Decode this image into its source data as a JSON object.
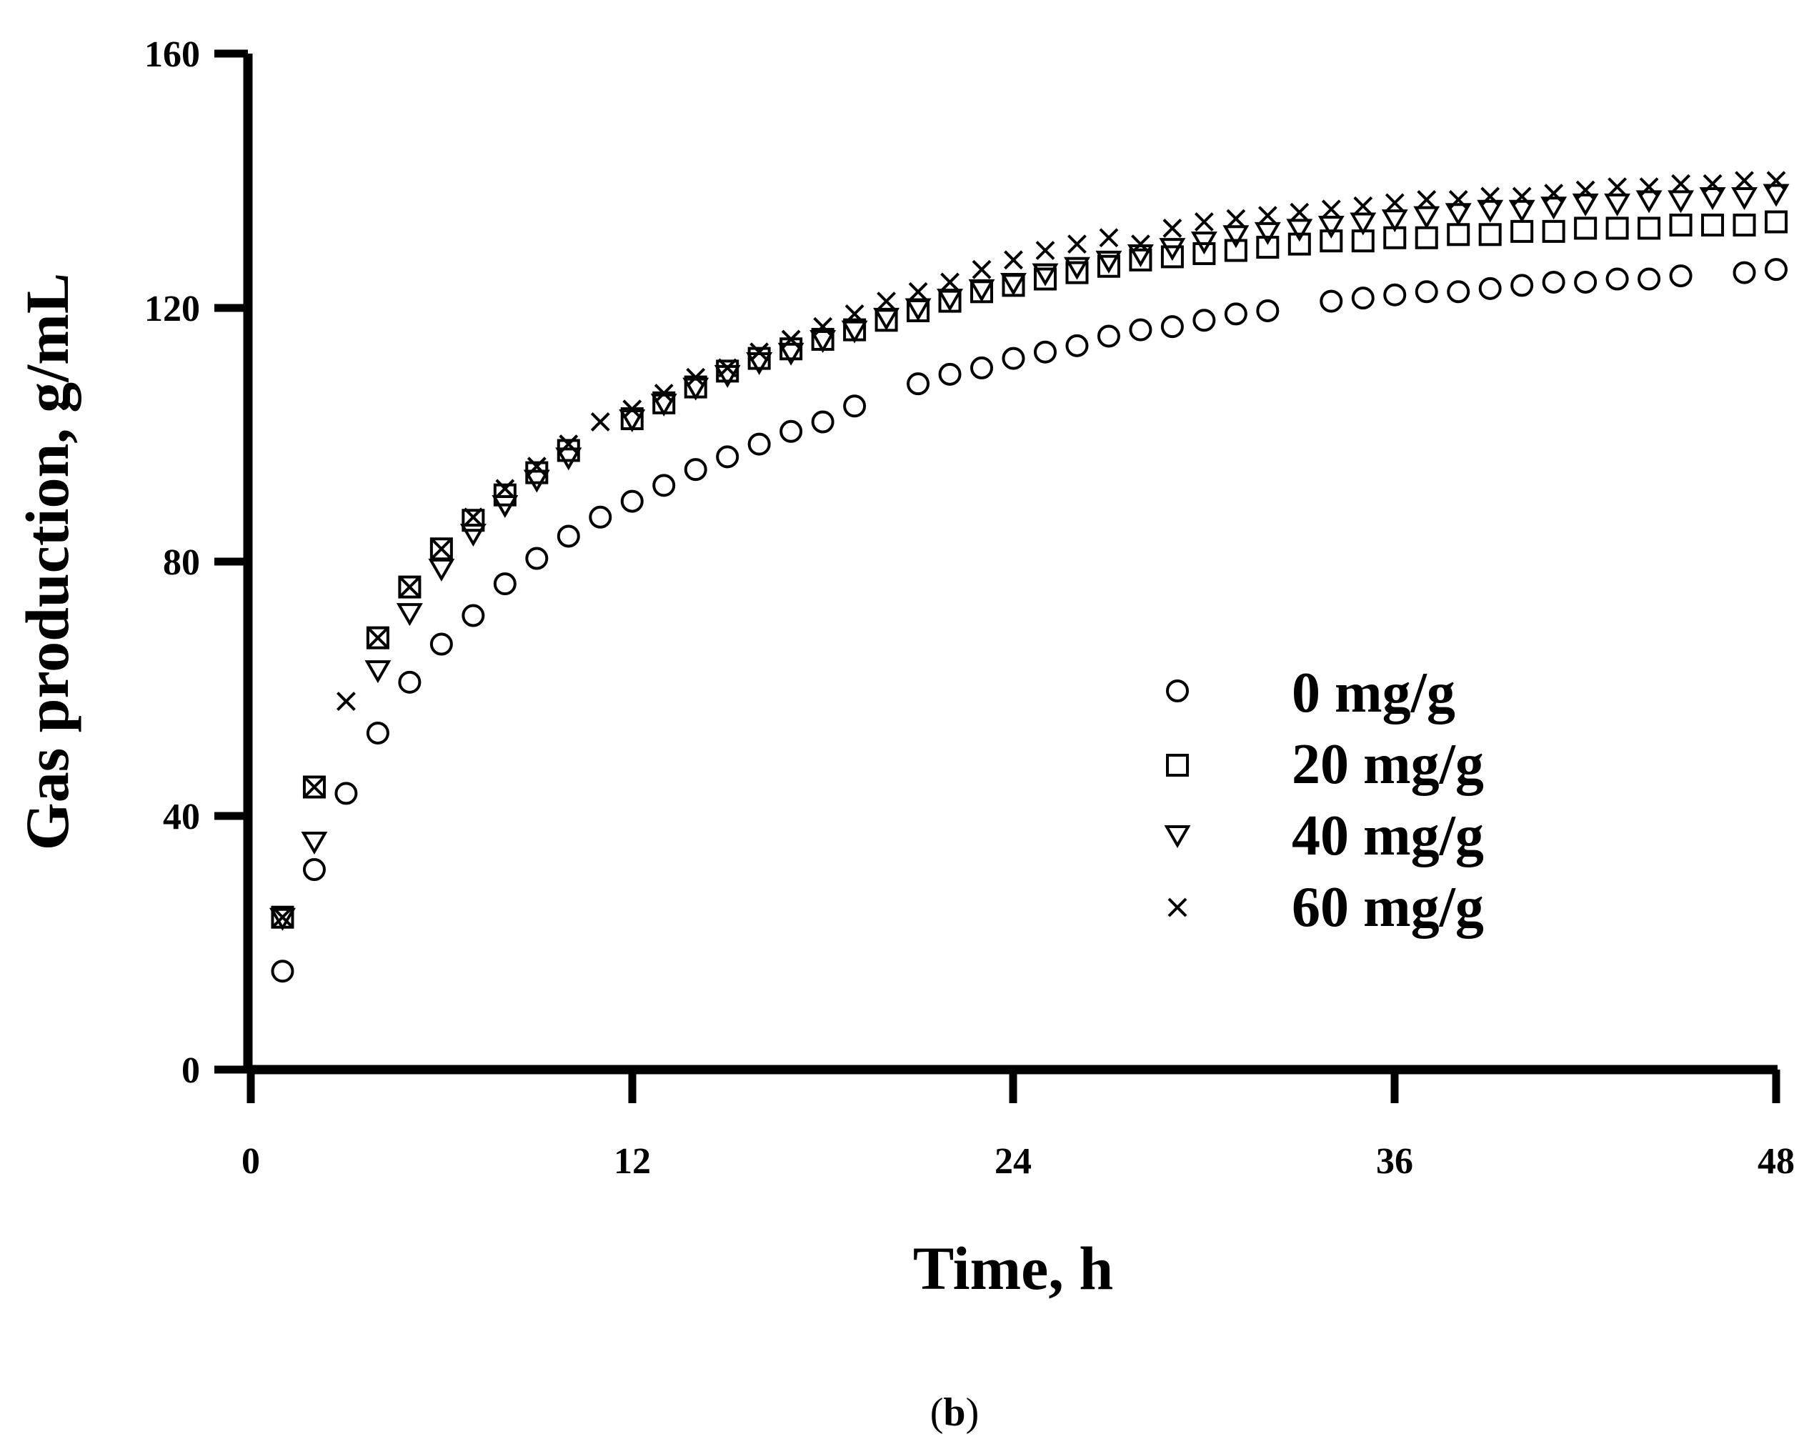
{
  "chart_data": {
    "type": "scatter",
    "xlabel": "Time, h",
    "ylabel": "Gas production, g/mL",
    "xlim": [
      0,
      48
    ],
    "ylim": [
      0,
      160
    ],
    "xticks": [
      "0",
      "12",
      "24",
      "36",
      "48"
    ],
    "yticks": [
      "0",
      "40",
      "80",
      "120",
      "160"
    ],
    "grid": false,
    "legend_position": "center-right",
    "panel_label": {
      "open": "(",
      "letter": "b",
      "close": ")"
    },
    "series": [
      {
        "name": "0 mg/g",
        "marker": "circle",
        "x": [
          1,
          2,
          3,
          4,
          5,
          6,
          7,
          8,
          9,
          10,
          11,
          12,
          13,
          14,
          15,
          16,
          17,
          18,
          19,
          21,
          22,
          23,
          24,
          25,
          26,
          27,
          28,
          29,
          30,
          31,
          32,
          34,
          35,
          36,
          37,
          38,
          39,
          40,
          41,
          42,
          43,
          44,
          45,
          47,
          48
        ],
        "y": [
          15.5,
          31.5,
          43.5,
          53,
          61,
          67,
          71.5,
          76.5,
          80.5,
          84,
          87,
          89.5,
          92,
          94.5,
          96.5,
          98.5,
          100.5,
          102,
          104.5,
          108,
          109.5,
          110.5,
          112,
          113,
          114,
          115.5,
          116.5,
          117,
          118,
          119,
          119.5,
          121,
          121.5,
          122,
          122.5,
          122.5,
          123,
          123.5,
          124,
          124,
          124.5,
          124.5,
          125,
          125.5,
          126
        ]
      },
      {
        "name": "20 mg/g",
        "marker": "square",
        "x": [
          1,
          2,
          4,
          5,
          6,
          7,
          8,
          9,
          10,
          12,
          13,
          14,
          15,
          16,
          17,
          18,
          19,
          20,
          21,
          22,
          23,
          24,
          25,
          26,
          27,
          28,
          29,
          30,
          31,
          32,
          33,
          34,
          35,
          36,
          37,
          38,
          39,
          40,
          41,
          42,
          43,
          44,
          45,
          46,
          47,
          48
        ],
        "y": [
          24,
          44.5,
          68,
          76,
          82,
          86.5,
          90.5,
          94,
          97.5,
          102.5,
          105,
          107.5,
          110,
          112,
          113.5,
          115,
          116.5,
          118,
          119.5,
          121,
          122.5,
          123.5,
          124.5,
          125.5,
          126.5,
          127.5,
          128,
          128.5,
          129,
          129.5,
          130,
          130.5,
          130.5,
          131,
          131,
          131.5,
          131.5,
          132,
          132,
          132.5,
          132.5,
          132.5,
          133,
          133,
          133,
          133.5
        ]
      },
      {
        "name": "40 mg/g",
        "marker": "triangle-down",
        "x": [
          1,
          2,
          4,
          5,
          6,
          7,
          8,
          9,
          10,
          12,
          13,
          14,
          15,
          16,
          17,
          18,
          19,
          20,
          21,
          22,
          23,
          24,
          25,
          26,
          27,
          28,
          29,
          30,
          31,
          32,
          33,
          34,
          35,
          36,
          37,
          38,
          39,
          40,
          41,
          42,
          43,
          44,
          45,
          46,
          47,
          48
        ],
        "y": [
          24,
          36,
          63,
          72,
          79,
          84.5,
          89,
          93,
          96.5,
          102.5,
          105,
          107.5,
          109.5,
          111.5,
          113,
          115,
          116.5,
          118.5,
          120,
          121.5,
          123,
          124,
          125.5,
          126.5,
          127.5,
          128.5,
          129.5,
          130.5,
          131.5,
          132,
          132.5,
          133,
          133.5,
          134,
          134.5,
          135,
          135.5,
          135.5,
          136,
          136.5,
          136.5,
          137,
          137,
          137.5,
          137.5,
          138
        ]
      },
      {
        "name": "60 mg/g",
        "marker": "x",
        "x": [
          1,
          2,
          3,
          4,
          5,
          6,
          7,
          8,
          9,
          10,
          11,
          12,
          13,
          14,
          15,
          16,
          17,
          18,
          19,
          20,
          21,
          22,
          23,
          24,
          25,
          26,
          27,
          28,
          29,
          30,
          31,
          32,
          33,
          34,
          35,
          36,
          37,
          38,
          39,
          40,
          41,
          42,
          43,
          44,
          45,
          46,
          47,
          48
        ],
        "y": [
          24,
          44.5,
          58,
          68,
          76,
          82,
          87,
          91.5,
          95,
          98.5,
          102,
          104,
          106.5,
          109,
          110.5,
          113,
          115,
          117,
          119,
          121,
          122.5,
          124,
          126,
          127.5,
          129,
          130,
          131,
          130,
          132.5,
          133.5,
          134,
          134.5,
          135,
          135.5,
          136,
          136.5,
          137,
          137,
          137.5,
          137.5,
          138,
          138.5,
          139,
          139,
          139.5,
          139.5,
          140,
          140
        ]
      }
    ]
  }
}
